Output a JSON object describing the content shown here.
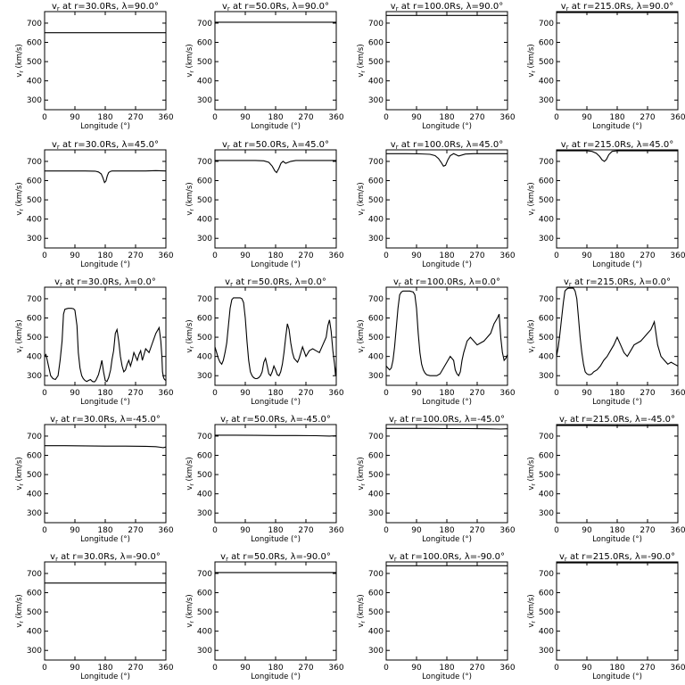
{
  "figure": {
    "y_axis_label": "v",
    "y_axis_label_subscript": "r",
    "y_axis_label_units": "(km/s)",
    "x_axis_label": "Longitude",
    "x_axis_label_units": "(°)",
    "title_template": "at r={r}Rs,  λ={lat}°",
    "colors": {
      "background": "#ffffff",
      "axes": "#000000",
      "line": "#000000"
    }
  },
  "chart_data": [
    {
      "type": "line",
      "title": "v_r at r=30.0Rs, λ=90.0°",
      "r": "30.0",
      "lat": "90.0",
      "xlabel": "Longitude (°)",
      "ylabel": "v_r (km/s)",
      "xlim": [
        0,
        360
      ],
      "ylim": [
        250,
        760
      ],
      "xticks": [
        0,
        90,
        180,
        270,
        360
      ],
      "yticks": [
        300,
        400,
        500,
        600,
        700
      ],
      "x": [
        0,
        360
      ],
      "y": [
        650,
        650
      ]
    },
    {
      "type": "line",
      "title": "v_r at r=50.0Rs, λ=90.0°",
      "r": "50.0",
      "lat": "90.0",
      "xlabel": "Longitude (°)",
      "ylabel": "v_r (km/s)",
      "xlim": [
        0,
        360
      ],
      "ylim": [
        250,
        760
      ],
      "xticks": [
        0,
        90,
        180,
        270,
        360
      ],
      "yticks": [
        300,
        400,
        500,
        600,
        700
      ],
      "x": [
        0,
        360
      ],
      "y": [
        705,
        705
      ]
    },
    {
      "type": "line",
      "title": "v_r at r=100.0Rs, λ=90.0°",
      "r": "100.0",
      "lat": "90.0",
      "xlabel": "Longitude (°)",
      "ylabel": "v_r (km/s)",
      "xlim": [
        0,
        360
      ],
      "ylim": [
        250,
        760
      ],
      "xticks": [
        0,
        90,
        180,
        270,
        360
      ],
      "yticks": [
        300,
        400,
        500,
        600,
        700
      ],
      "x": [
        0,
        360
      ],
      "y": [
        740,
        740
      ]
    },
    {
      "type": "line",
      "title": "v_r at r=215.0Rs, λ=90.0°",
      "r": "215.0",
      "lat": "90.0",
      "xlabel": "Longitude (°)",
      "ylabel": "v_r (km/s)",
      "xlim": [
        0,
        360
      ],
      "ylim": [
        250,
        760
      ],
      "xticks": [
        0,
        90,
        180,
        270,
        360
      ],
      "yticks": [
        300,
        400,
        500,
        600,
        700
      ],
      "x": [
        0,
        360
      ],
      "y": [
        755,
        755
      ]
    },
    {
      "type": "line",
      "title": "v_r at r=30.0Rs, λ=45.0°",
      "r": "30.0",
      "lat": "45.0",
      "xlabel": "Longitude (°)",
      "ylabel": "v_r (km/s)",
      "xlim": [
        0,
        360
      ],
      "ylim": [
        250,
        760
      ],
      "xticks": [
        0,
        90,
        180,
        270,
        360
      ],
      "yticks": [
        300,
        400,
        500,
        600,
        700
      ],
      "x": [
        0,
        60,
        120,
        150,
        160,
        168,
        173,
        178,
        182,
        186,
        190,
        195,
        200,
        210,
        240,
        300,
        330,
        360
      ],
      "y": [
        650,
        650,
        650,
        649,
        645,
        635,
        615,
        590,
        598,
        625,
        642,
        648,
        650,
        650,
        650,
        650,
        652,
        650
      ]
    },
    {
      "type": "line",
      "title": "v_r at r=50.0Rs, λ=45.0°",
      "r": "50.0",
      "lat": "45.0",
      "xlabel": "Longitude (°)",
      "ylabel": "v_r (km/s)",
      "xlim": [
        0,
        360
      ],
      "ylim": [
        250,
        760
      ],
      "xticks": [
        0,
        90,
        180,
        270,
        360
      ],
      "yticks": [
        300,
        400,
        500,
        600,
        700
      ],
      "x": [
        0,
        60,
        120,
        145,
        160,
        170,
        178,
        183,
        190,
        196,
        202,
        210,
        225,
        240,
        300,
        360
      ],
      "y": [
        705,
        705,
        705,
        703,
        695,
        675,
        650,
        642,
        665,
        690,
        700,
        690,
        700,
        705,
        705,
        705
      ]
    },
    {
      "type": "line",
      "title": "v_r at r=100.0Rs, λ=45.0°",
      "r": "100.0",
      "lat": "45.0",
      "xlabel": "Longitude (°)",
      "ylabel": "v_r (km/s)",
      "xlim": [
        0,
        360
      ],
      "ylim": [
        250,
        760
      ],
      "xticks": [
        0,
        90,
        180,
        270,
        360
      ],
      "yticks": [
        300,
        400,
        500,
        600,
        700
      ],
      "x": [
        0,
        60,
        100,
        130,
        145,
        155,
        163,
        170,
        176,
        183,
        190,
        200,
        215,
        235,
        260,
        300,
        360
      ],
      "y": [
        740,
        740,
        739,
        737,
        730,
        715,
        695,
        675,
        680,
        708,
        730,
        740,
        728,
        738,
        740,
        740,
        740
      ]
    },
    {
      "type": "line",
      "title": "v_r at r=215.0Rs, λ=45.0°",
      "r": "215.0",
      "lat": "45.0",
      "xlabel": "Longitude (°)",
      "ylabel": "v_r (km/s)",
      "xlim": [
        0,
        360
      ],
      "ylim": [
        250,
        760
      ],
      "xticks": [
        0,
        90,
        180,
        270,
        360
      ],
      "yticks": [
        300,
        400,
        500,
        600,
        700
      ],
      "x": [
        0,
        60,
        90,
        105,
        118,
        128,
        135,
        142,
        148,
        155,
        165,
        180,
        230,
        300,
        360
      ],
      "y": [
        755,
        755,
        755,
        752,
        742,
        725,
        708,
        700,
        710,
        735,
        752,
        755,
        755,
        755,
        755
      ]
    },
    {
      "type": "line",
      "title": "v_r at r=30.0Rs, λ=0.0°",
      "r": "30.0",
      "lat": "0.0",
      "xlabel": "Longitude (°)",
      "ylabel": "v_r (km/s)",
      "xlim": [
        0,
        360
      ],
      "ylim": [
        250,
        760
      ],
      "xticks": [
        0,
        90,
        180,
        270,
        360
      ],
      "yticks": [
        300,
        400,
        500,
        600,
        700
      ],
      "x": [
        0,
        4,
        8,
        13,
        18,
        25,
        32,
        40,
        46,
        52,
        56,
        60,
        65,
        70,
        75,
        80,
        86,
        90,
        96,
        100,
        105,
        110,
        115,
        120,
        125,
        130,
        136,
        142,
        148,
        152,
        156,
        160,
        165,
        170,
        175,
        180,
        185,
        190,
        196,
        200,
        205,
        210,
        215,
        220,
        225,
        230,
        235,
        240,
        245,
        250,
        255,
        260,
        265,
        270,
        275,
        280,
        285,
        290,
        300,
        310,
        320,
        330,
        340,
        345,
        348,
        350,
        353,
        356,
        360
      ],
      "y": [
        400,
        410,
        380,
        340,
        300,
        285,
        280,
        300,
        380,
        480,
        620,
        645,
        648,
        650,
        650,
        650,
        648,
        640,
        560,
        420,
        340,
        300,
        285,
        275,
        270,
        275,
        280,
        270,
        268,
        275,
        290,
        305,
        340,
        380,
        320,
        275,
        270,
        290,
        330,
        385,
        430,
        520,
        540,
        480,
        400,
        350,
        320,
        330,
        360,
        380,
        350,
        380,
        420,
        400,
        380,
        410,
        430,
        380,
        440,
        420,
        470,
        520,
        550,
        480,
        400,
        320,
        290,
        280,
        275
      ]
    },
    {
      "type": "line",
      "title": "v_r at r=50.0Rs, λ=0.0°",
      "r": "50.0",
      "lat": "0.0",
      "xlabel": "Longitude (°)",
      "ylabel": "v_r (km/s)",
      "xlim": [
        0,
        360
      ],
      "ylim": [
        250,
        760
      ],
      "xticks": [
        0,
        90,
        180,
        270,
        360
      ],
      "yticks": [
        300,
        400,
        500,
        600,
        700
      ],
      "x": [
        0,
        5,
        10,
        15,
        20,
        25,
        30,
        35,
        40,
        45,
        50,
        55,
        60,
        65,
        70,
        75,
        80,
        85,
        90,
        95,
        100,
        105,
        110,
        115,
        120,
        125,
        130,
        135,
        140,
        145,
        150,
        155,
        160,
        165,
        170,
        175,
        180,
        185,
        190,
        195,
        200,
        205,
        210,
        215,
        220,
        225,
        230,
        235,
        240,
        245,
        250,
        255,
        260,
        270,
        280,
        290,
        300,
        310,
        320,
        330,
        335,
        340,
        345,
        350,
        355,
        358,
        360
      ],
      "y": [
        450,
        420,
        390,
        370,
        360,
        380,
        420,
        470,
        560,
        650,
        695,
        705,
        705,
        705,
        705,
        705,
        700,
        680,
        600,
        480,
        380,
        320,
        300,
        290,
        285,
        285,
        290,
        300,
        320,
        370,
        390,
        350,
        310,
        300,
        320,
        350,
        330,
        305,
        300,
        320,
        360,
        420,
        500,
        570,
        540,
        470,
        420,
        390,
        380,
        370,
        390,
        420,
        450,
        400,
        430,
        440,
        430,
        420,
        460,
        500,
        560,
        590,
        530,
        430,
        360,
        300,
        350
      ]
    },
    {
      "type": "line",
      "title": "v_r at r=100.0Rs, λ=0.0°",
      "r": "100.0",
      "lat": "0.0",
      "xlabel": "Longitude (°)",
      "ylabel": "v_r (km/s)",
      "xlim": [
        0,
        360
      ],
      "ylim": [
        250,
        760
      ],
      "xticks": [
        0,
        90,
        180,
        270,
        360
      ],
      "yticks": [
        300,
        400,
        500,
        600,
        700
      ],
      "x": [
        0,
        5,
        10,
        15,
        20,
        25,
        30,
        35,
        40,
        45,
        50,
        55,
        60,
        70,
        80,
        85,
        90,
        95,
        100,
        105,
        110,
        115,
        120,
        130,
        140,
        150,
        160,
        170,
        180,
        190,
        200,
        205,
        210,
        215,
        220,
        225,
        230,
        235,
        240,
        250,
        260,
        270,
        280,
        290,
        300,
        310,
        320,
        330,
        335,
        340,
        345,
        350,
        355,
        360
      ],
      "y": [
        350,
        340,
        330,
        340,
        380,
        450,
        550,
        650,
        720,
        735,
        740,
        740,
        740,
        740,
        735,
        720,
        650,
        520,
        420,
        360,
        330,
        315,
        305,
        300,
        300,
        300,
        310,
        340,
        370,
        400,
        380,
        330,
        310,
        300,
        320,
        380,
        420,
        450,
        480,
        500,
        480,
        460,
        470,
        480,
        500,
        520,
        570,
        600,
        620,
        500,
        420,
        380,
        390,
        410
      ]
    },
    {
      "type": "line",
      "title": "v_r at r=215.0Rs, λ=0.0°",
      "r": "215.0",
      "lat": "0.0",
      "xlabel": "Longitude (°)",
      "ylabel": "v_r (km/s)",
      "xlim": [
        0,
        360
      ],
      "ylim": [
        250,
        760
      ],
      "xticks": [
        0,
        90,
        180,
        270,
        360
      ],
      "yticks": [
        300,
        400,
        500,
        600,
        700
      ],
      "x": [
        0,
        5,
        10,
        15,
        20,
        25,
        30,
        35,
        40,
        45,
        50,
        55,
        60,
        65,
        70,
        75,
        80,
        85,
        90,
        95,
        100,
        105,
        110,
        120,
        130,
        140,
        150,
        160,
        170,
        180,
        190,
        200,
        210,
        220,
        230,
        240,
        250,
        260,
        270,
        280,
        290,
        300,
        310,
        320,
        330,
        340,
        350,
        360
      ],
      "y": [
        400,
        450,
        520,
        600,
        680,
        740,
        750,
        755,
        755,
        755,
        755,
        740,
        700,
        600,
        500,
        420,
        360,
        320,
        310,
        305,
        305,
        310,
        320,
        330,
        350,
        380,
        400,
        430,
        460,
        500,
        460,
        420,
        400,
        430,
        460,
        470,
        480,
        500,
        520,
        540,
        580,
        460,
        400,
        380,
        360,
        370,
        360,
        350
      ]
    },
    {
      "type": "line",
      "title": "v_r at r=30.0Rs, λ=-45.0°",
      "r": "30.0",
      "lat": "-45.0",
      "xlabel": "Longitude (°)",
      "ylabel": "v_r (km/s)",
      "xlim": [
        0,
        360
      ],
      "ylim": [
        250,
        760
      ],
      "xticks": [
        0,
        90,
        180,
        270,
        360
      ],
      "yticks": [
        300,
        400,
        500,
        600,
        700
      ],
      "x": [
        0,
        60,
        120,
        180,
        240,
        300,
        330,
        345,
        352,
        360
      ],
      "y": [
        650,
        650,
        649,
        648,
        648,
        647,
        645,
        642,
        640,
        643
      ]
    },
    {
      "type": "line",
      "title": "v_r at r=50.0Rs, λ=-45.0°",
      "r": "50.0",
      "lat": "-45.0",
      "xlabel": "Longitude (°)",
      "ylabel": "v_r (km/s)",
      "xlim": [
        0,
        360
      ],
      "ylim": [
        250,
        760
      ],
      "xticks": [
        0,
        90,
        180,
        270,
        360
      ],
      "yticks": [
        300,
        400,
        500,
        600,
        700
      ],
      "x": [
        0,
        60,
        120,
        180,
        240,
        300,
        340,
        360
      ],
      "y": [
        705,
        705,
        704,
        703,
        703,
        702,
        700,
        702
      ]
    },
    {
      "type": "line",
      "title": "v_r at r=100.0Rs, λ=-45.0°",
      "r": "100.0",
      "lat": "-45.0",
      "xlabel": "Longitude (°)",
      "ylabel": "v_r (km/s)",
      "xlim": [
        0,
        360
      ],
      "ylim": [
        250,
        760
      ],
      "xticks": [
        0,
        90,
        180,
        270,
        360
      ],
      "yticks": [
        300,
        400,
        500,
        600,
        700
      ],
      "x": [
        0,
        60,
        120,
        180,
        240,
        300,
        340,
        360
      ],
      "y": [
        740,
        740,
        740,
        739,
        739,
        738,
        737,
        738
      ]
    },
    {
      "type": "line",
      "title": "v_r at r=215.0Rs, λ=-45.0°",
      "r": "215.0",
      "lat": "-45.0",
      "xlabel": "Longitude (°)",
      "ylabel": "v_r (km/s)",
      "xlim": [
        0,
        360
      ],
      "ylim": [
        250,
        760
      ],
      "xticks": [
        0,
        90,
        180,
        270,
        360
      ],
      "yticks": [
        300,
        400,
        500,
        600,
        700
      ],
      "x": [
        0,
        90,
        180,
        270,
        360
      ],
      "y": [
        755,
        755,
        754,
        754,
        755
      ]
    },
    {
      "type": "line",
      "title": "v_r at r=30.0Rs, λ=-90.0°",
      "r": "30.0",
      "lat": "-90.0",
      "xlabel": "Longitude (°)",
      "ylabel": "v_r (km/s)",
      "xlim": [
        0,
        360
      ],
      "ylim": [
        250,
        760
      ],
      "xticks": [
        0,
        90,
        180,
        270,
        360
      ],
      "yticks": [
        300,
        400,
        500,
        600,
        700
      ],
      "x": [
        0,
        360
      ],
      "y": [
        650,
        650
      ]
    },
    {
      "type": "line",
      "title": "v_r at r=50.0Rs, λ=-90.0°",
      "r": "50.0",
      "lat": "-90.0",
      "xlabel": "Longitude (°)",
      "ylabel": "v_r (km/s)",
      "xlim": [
        0,
        360
      ],
      "ylim": [
        250,
        760
      ],
      "xticks": [
        0,
        90,
        180,
        270,
        360
      ],
      "yticks": [
        300,
        400,
        500,
        600,
        700
      ],
      "x": [
        0,
        360
      ],
      "y": [
        705,
        705
      ]
    },
    {
      "type": "line",
      "title": "v_r at r=100.0Rs, λ=-90.0°",
      "r": "100.0",
      "lat": "-90.0",
      "xlabel": "Longitude (°)",
      "ylabel": "v_r (km/s)",
      "xlim": [
        0,
        360
      ],
      "ylim": [
        250,
        760
      ],
      "xticks": [
        0,
        90,
        180,
        270,
        360
      ],
      "yticks": [
        300,
        400,
        500,
        600,
        700
      ],
      "x": [
        0,
        360
      ],
      "y": [
        740,
        740
      ]
    },
    {
      "type": "line",
      "title": "v_r at r=215.0Rs, λ=-90.0°",
      "r": "215.0",
      "lat": "-90.0",
      "xlabel": "Longitude (°)",
      "ylabel": "v_r (km/s)",
      "xlim": [
        0,
        360
      ],
      "ylim": [
        250,
        760
      ],
      "xticks": [
        0,
        90,
        180,
        270,
        360
      ],
      "yticks": [
        300,
        400,
        500,
        600,
        700
      ],
      "x": [
        0,
        360
      ],
      "y": [
        755,
        755
      ]
    }
  ]
}
